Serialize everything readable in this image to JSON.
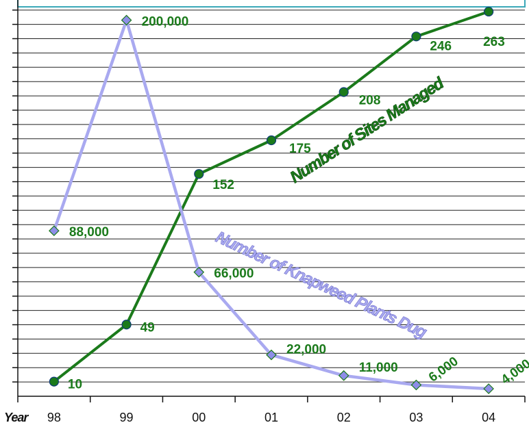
{
  "chart_data": {
    "type": "line",
    "x_label": "Year",
    "categories": [
      "98",
      "99",
      "00",
      "01",
      "02",
      "03",
      "04"
    ],
    "series": [
      {
        "name": "Number of Sites Managed",
        "axis": "sites",
        "color": "#1b7a1b",
        "label_color": "#1b7a1b",
        "marker": "circle",
        "values": [
          10,
          49,
          152,
          175,
          208,
          246,
          263
        ],
        "labels": [
          "10",
          "49",
          "152",
          "175",
          "208",
          "246",
          "263"
        ]
      },
      {
        "name": "Number of Knapweed Plants Dug",
        "axis": "plants",
        "color": "#a9a9f0",
        "label_color": "#1b7a1b",
        "marker": "diamond",
        "values": [
          88000,
          200000,
          66000,
          22000,
          11000,
          6000,
          4000
        ],
        "labels": [
          "88,000",
          "200,000",
          "66,000",
          "22,000",
          "11,000",
          "6,000",
          "4,000"
        ]
      }
    ],
    "axes": {
      "sites": {
        "min": 0,
        "max": 270
      },
      "plants": {
        "min": 0,
        "max": 210000
      }
    },
    "grid": true,
    "legend": "none"
  }
}
